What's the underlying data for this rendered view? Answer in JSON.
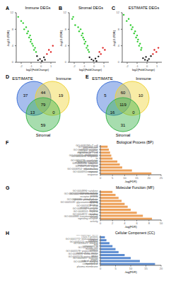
{
  "chart_data": [
    {
      "type": "scatter",
      "annotations": [
        "A"
      ],
      "title": "Immune DEGs",
      "x_label": "log2(FoldChange)",
      "y_label": "-log10 (FDR)",
      "xlim": [
        -2.5,
        1.5
      ],
      "xticks": [
        -2,
        -1,
        0,
        1
      ],
      "ylim": [
        0,
        12
      ],
      "yticks": [
        0,
        4,
        8,
        12
      ],
      "grid": false,
      "series": [
        {
          "color": "#2fcc2f",
          "x": [
            -2.3,
            -2.0,
            -1.8,
            -1.7,
            -1.5,
            -1.4,
            -1.3,
            -1.2,
            -1.1,
            -1.05,
            -1.0,
            -0.9,
            -0.8,
            -0.7,
            -0.6,
            -0.5
          ],
          "values": [
            11,
            10,
            9.5,
            8,
            8.5,
            7,
            7.5,
            6,
            6.5,
            5,
            5.5,
            4.5,
            4,
            3,
            3.5,
            2.5
          ]
        },
        {
          "color": "#e02020",
          "x": [
            0.6,
            0.8,
            1.0,
            1.2
          ],
          "values": [
            2,
            3,
            2.5,
            4
          ]
        },
        {
          "color": "#222222",
          "x": [
            -0.4,
            -0.3,
            -0.1,
            0.1,
            0.3,
            0.4
          ],
          "values": [
            1.5,
            0.5,
            0.8,
            0.3,
            1.2,
            0.6
          ]
        }
      ]
    },
    {
      "type": "scatter",
      "annotations": [
        "B"
      ],
      "title": "Stromal DEGs",
      "x_label": "log2(FoldChange)",
      "y_label": "-log10 (FDR)",
      "xlim": [
        -2.5,
        1.5
      ],
      "xticks": [
        -2,
        -1,
        0,
        1
      ],
      "ylim": [
        0,
        12
      ],
      "yticks": [
        0,
        4,
        8,
        12
      ],
      "grid": false,
      "series": [
        {
          "color": "#2fcc2f",
          "x": [
            -2.2,
            -2.1,
            -1.9,
            -1.6,
            -1.5,
            -1.35,
            -1.25,
            -1.15,
            -1.1,
            -1.0,
            -0.95,
            -0.85,
            -0.75,
            -0.65,
            -0.6,
            -0.5
          ],
          "values": [
            10.5,
            11,
            9,
            8.5,
            7.5,
            8,
            6.5,
            7,
            6,
            5.5,
            4.5,
            5,
            3.5,
            4,
            3,
            2.5
          ]
        },
        {
          "color": "#e02020",
          "x": [
            0.55,
            0.7,
            0.9,
            1.1
          ],
          "values": [
            2.5,
            2,
            3.5,
            3
          ]
        },
        {
          "color": "#222222",
          "x": [
            -0.45,
            -0.25,
            -0.05,
            0.15,
            0.25,
            0.45
          ],
          "values": [
            1.2,
            0.7,
            0.4,
            0.9,
            0.3,
            1.4
          ]
        }
      ]
    },
    {
      "type": "scatter",
      "annotations": [
        "C"
      ],
      "title": "ESTIMATE DEGs",
      "x_label": "log2(FoldChange)",
      "y_label": "-log10 (FDR)",
      "xlim": [
        -2.5,
        1.5
      ],
      "xticks": [
        -2,
        -1,
        0,
        1
      ],
      "ylim": [
        0,
        12
      ],
      "yticks": [
        0,
        4,
        8,
        12
      ],
      "grid": false,
      "series": [
        {
          "color": "#2fcc2f",
          "x": [
            -2.35,
            -2.05,
            -1.85,
            -1.65,
            -1.55,
            -1.45,
            -1.3,
            -1.2,
            -1.1,
            -1.0,
            -0.95,
            -0.9,
            -0.8,
            -0.7,
            -0.6,
            -0.55
          ],
          "values": [
            11.5,
            10,
            10.5,
            9,
            8,
            8.5,
            7,
            7.5,
            6,
            6.5,
            5,
            5.5,
            4,
            4.5,
            3,
            3.5
          ]
        },
        {
          "color": "#e02020",
          "x": [
            0.6,
            0.75,
            0.95,
            1.15
          ],
          "values": [
            2,
            3,
            2.5,
            3.5
          ]
        },
        {
          "color": "#222222",
          "x": [
            -0.4,
            -0.2,
            -0.1,
            0.05,
            0.2,
            0.4
          ],
          "values": [
            1.0,
            0.6,
            1.3,
            0.4,
            0.8,
            1.5
          ]
        }
      ]
    },
    {
      "type": "venn",
      "annotations": [
        "D"
      ],
      "sets": [
        {
          "name": "ESTIMATE",
          "color": "#3b6fd6"
        },
        {
          "name": "Immune",
          "color": "#f0d43a"
        },
        {
          "name": "Stromal",
          "color": "#3cb44b"
        }
      ],
      "regions": [
        {
          "sets": [
            0
          ],
          "value": 37
        },
        {
          "sets": [
            1
          ],
          "value": 19
        },
        {
          "sets": [
            2
          ],
          "value": 59
        },
        {
          "sets": [
            0,
            1
          ],
          "value": 44
        },
        {
          "sets": [
            0,
            2
          ],
          "value": 13
        },
        {
          "sets": [
            1,
            2
          ],
          "value": 0
        },
        {
          "sets": [
            0,
            1,
            2
          ],
          "value": 79
        }
      ]
    },
    {
      "type": "venn",
      "annotations": [
        "E"
      ],
      "sets": [
        {
          "name": "ESTIMATE",
          "color": "#3b6fd6"
        },
        {
          "name": "Immune",
          "color": "#f0d43a"
        },
        {
          "name": "Stromal",
          "color": "#3cb44b"
        }
      ],
      "regions": [
        {
          "sets": [
            0
          ],
          "value": 5
        },
        {
          "sets": [
            1
          ],
          "value": 10
        },
        {
          "sets": [
            2
          ],
          "value": 31
        },
        {
          "sets": [
            0,
            1
          ],
          "value": 60
        },
        {
          "sets": [
            0,
            2
          ],
          "value": 16
        },
        {
          "sets": [
            1,
            2
          ],
          "value": 0
        },
        {
          "sets": [
            0,
            1,
            2
          ],
          "value": 119
        }
      ]
    },
    {
      "type": "bar",
      "orientation": "horizontal",
      "annotations": [
        "F"
      ],
      "title": "Biological Process (BP)",
      "x_label": "-log(FDR)",
      "color": "#eda15a",
      "grid": false,
      "xlim": [
        0,
        25
      ],
      "xticks": [
        0,
        5,
        10,
        15,
        20,
        25
      ],
      "categories": [
        "GO:0031295~T cell costimulation",
        "GO:0007166~cell surface receptor signaling pathway",
        "GO:0042102~positive regulation of T cell proliferation",
        "GO:0006935~chemotaxis",
        "GO:0032496~response to lipopolysaccharide",
        "GO:0050776~regulation of immune response",
        "GO:0002250~adaptive immune response",
        "GO:0007165~signal transduction",
        "GO:0006954~inflammatory response",
        "GO:0006955~immune response"
      ],
      "values": [
        3,
        3.5,
        4,
        4.5,
        5,
        7,
        8,
        9,
        13,
        21
      ]
    },
    {
      "type": "bar",
      "orientation": "horizontal",
      "annotations": [
        "G"
      ],
      "title": "Molecular Function (MF)",
      "x_label": "-log(FDR)",
      "color": "#eda15a",
      "grid": false,
      "xlim": [
        0,
        10
      ],
      "xticks": [
        0,
        2,
        4,
        6,
        8,
        10
      ],
      "categories": [
        "GO:0004896~cytokine receptor activity",
        "GO:0008009~chemokine activity",
        "GO:0005001~transmembrane receptor protein tyrosine phosphatase activity",
        "GO:0030246~carbohydrate binding",
        "GO:0005539~glycosaminoglycan binding",
        "GO:0001618~virus receptor activity",
        "GO:0005102~receptor binding",
        "GO:0008201~heparin binding",
        "GO:0004872~receptor activity",
        "GO:0004888~transmembrane signaling receptor activity"
      ],
      "values": [
        2,
        2.5,
        3,
        3.5,
        4,
        4.5,
        5,
        6,
        7,
        8.5
      ]
    },
    {
      "type": "bar",
      "orientation": "horizontal",
      "annotations": [
        "H"
      ],
      "title": "Cellular Component (CC)",
      "x_label": "-log(FDR)",
      "color": "#5b8bd0",
      "grid": false,
      "xlim": [
        0,
        20
      ],
      "xticks": [
        0,
        5,
        10,
        15,
        20
      ],
      "categories": [
        "GO:0042613~MHC class II protein complex",
        "GO:0001772~immunological synapse",
        "GO:0045121~membrane raft",
        "GO:0016021~integral component of membrane",
        "GO:0009986~cell surface",
        "GO:0005578~proteinaceous extracellular matrix",
        "GO:0005615~extracellular space",
        "GO:0005576~extracellular region",
        "GO:0009897~external side of plasma membrane",
        "GO:0005887~integral component of plasma membrane"
      ],
      "values": [
        1.5,
        2,
        3,
        4,
        5,
        6,
        8,
        10,
        13,
        18
      ]
    }
  ]
}
